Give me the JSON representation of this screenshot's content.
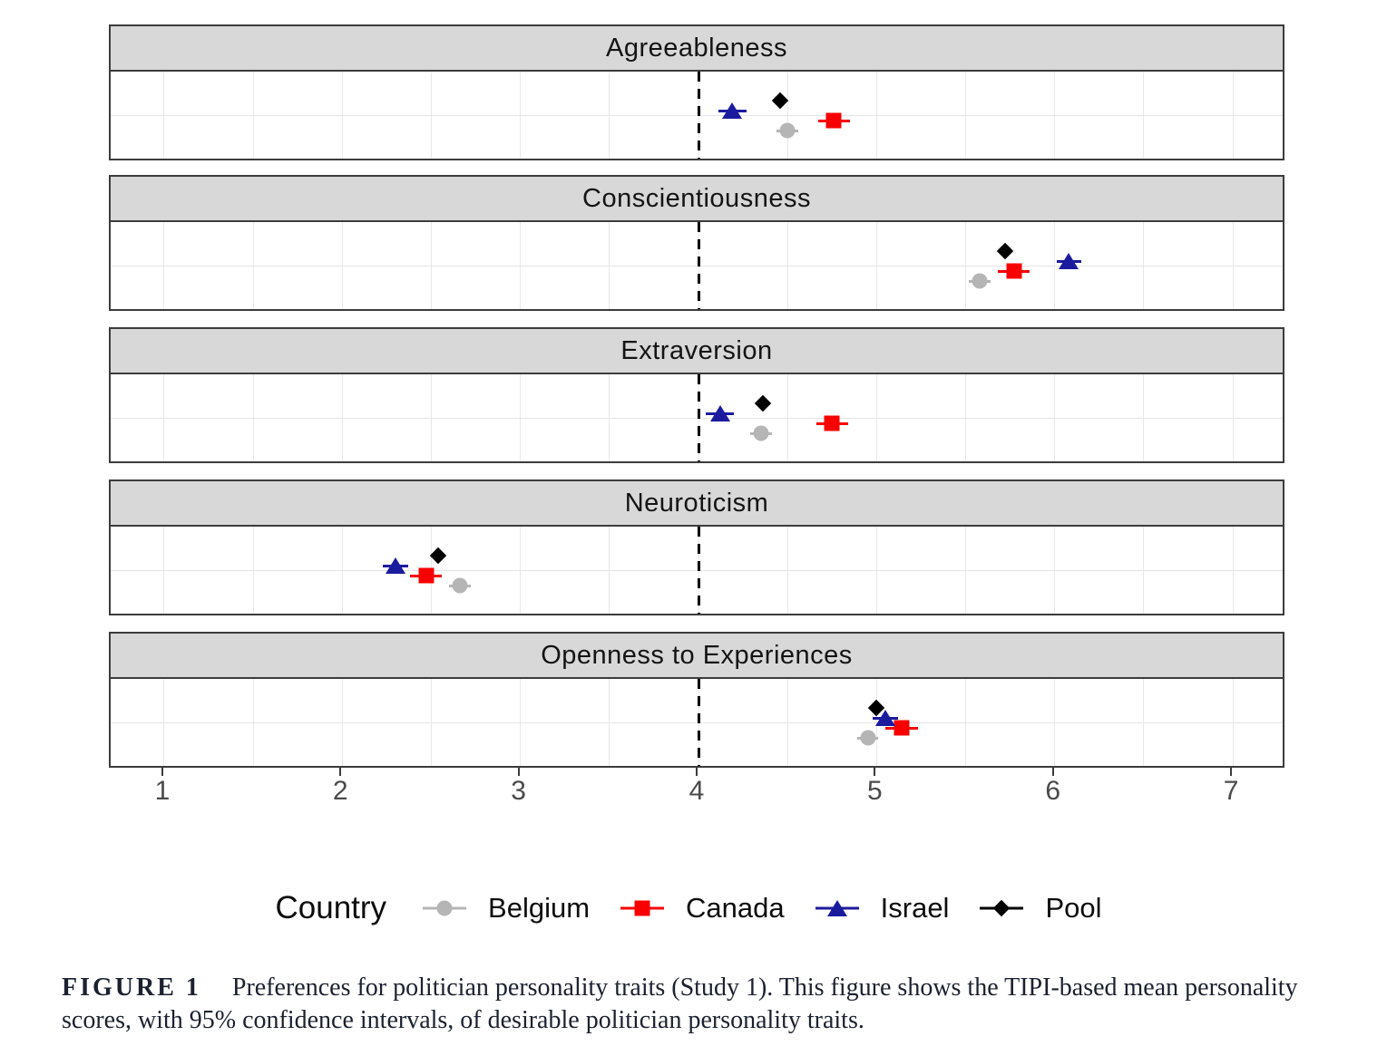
{
  "chart_data": {
    "type": "pointrange-dotplot",
    "title": "",
    "facets": [
      "Agreeableness",
      "Conscientiousness",
      "Extraversion",
      "Neuroticism",
      "Openness to Experiences"
    ],
    "x_ticks": [
      1,
      2,
      3,
      4,
      5,
      6,
      7
    ],
    "x_range": [
      0.7,
      7.3
    ],
    "gridline_step": 0.5,
    "reference_line_x": 4,
    "legend_title": "Country",
    "series": [
      {
        "name": "Belgium",
        "marker": "circle",
        "color": "#b5b5b5",
        "values": [
          4.5,
          5.58,
          4.35,
          2.66,
          4.95
        ],
        "ci_half_width": [
          0.06,
          0.06,
          0.06,
          0.06,
          0.06
        ]
      },
      {
        "name": "Canada",
        "marker": "square",
        "color": "#f80000",
        "values": [
          4.76,
          5.77,
          4.75,
          2.47,
          5.14
        ],
        "ci_half_width": [
          0.09,
          0.09,
          0.09,
          0.09,
          0.09
        ]
      },
      {
        "name": "Israel",
        "marker": "triangle",
        "color": "#1b1b9e",
        "values": [
          4.19,
          6.08,
          4.12,
          2.3,
          5.05
        ],
        "ci_half_width": [
          0.08,
          0.07,
          0.08,
          0.07,
          0.07
        ]
      },
      {
        "name": "Pool",
        "marker": "diamond",
        "color": "#000000",
        "values": [
          4.46,
          5.72,
          4.36,
          2.54,
          5.0
        ],
        "ci_half_width": [
          0.03,
          0.03,
          0.03,
          0.03,
          0.03
        ]
      }
    ],
    "dodge_order_top_to_bottom": [
      "Pool",
      "Israel",
      "Canada",
      "Belgium"
    ]
  },
  "caption": {
    "label": "FIGURE 1",
    "text": "Preferences for politician personality traits (Study 1). This figure shows the TIPI-based mean personality scores, with 95% confidence intervals, of desirable politician personality traits."
  }
}
